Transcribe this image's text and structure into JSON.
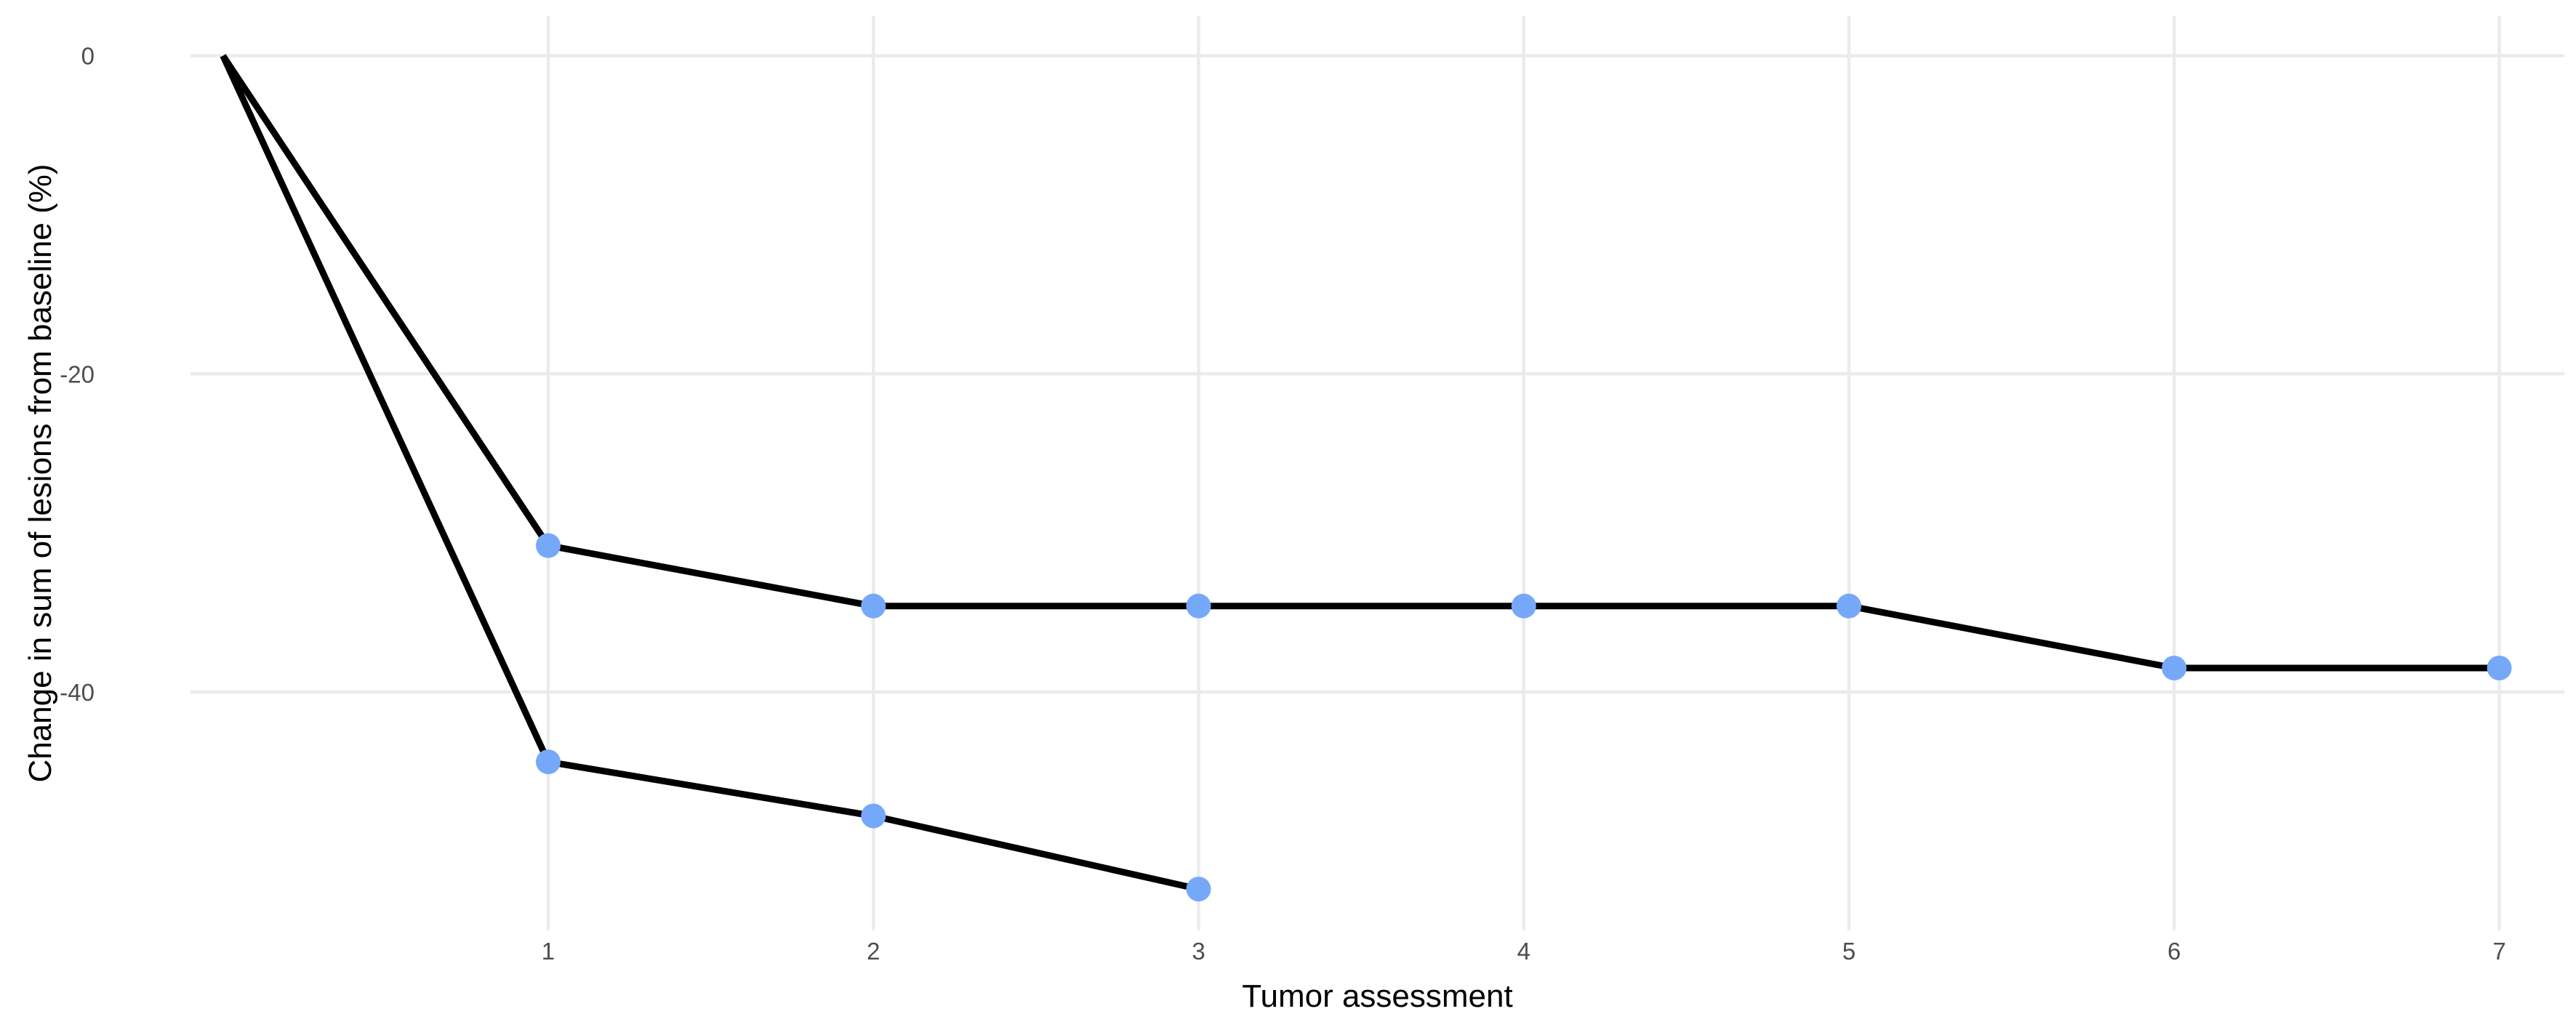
{
  "chart_data": {
    "type": "line",
    "xlabel": "Tumor assessment",
    "ylabel": "Change in sum of lesions from baseline (%)",
    "x_ticks": [
      1,
      2,
      3,
      4,
      5,
      6,
      7
    ],
    "y_ticks": [
      0,
      -20,
      -40
    ],
    "xlim": [
      -0.1,
      7.2
    ],
    "ylim": [
      -55,
      2.5
    ],
    "grid": true,
    "legend": "none",
    "colors": {
      "line": "#000000",
      "point": "#76a8fa",
      "grid": "#ebebeb"
    },
    "series": [
      {
        "x": [
          0,
          1,
          2,
          3,
          4,
          5,
          6,
          7
        ],
        "y": [
          0,
          -30.8,
          -34.6,
          -34.6,
          -34.6,
          -34.6,
          -38.5,
          -38.5
        ]
      },
      {
        "x": [
          0,
          1,
          2,
          3
        ],
        "y": [
          0,
          -44.4,
          -47.8,
          -52.4
        ]
      }
    ]
  }
}
